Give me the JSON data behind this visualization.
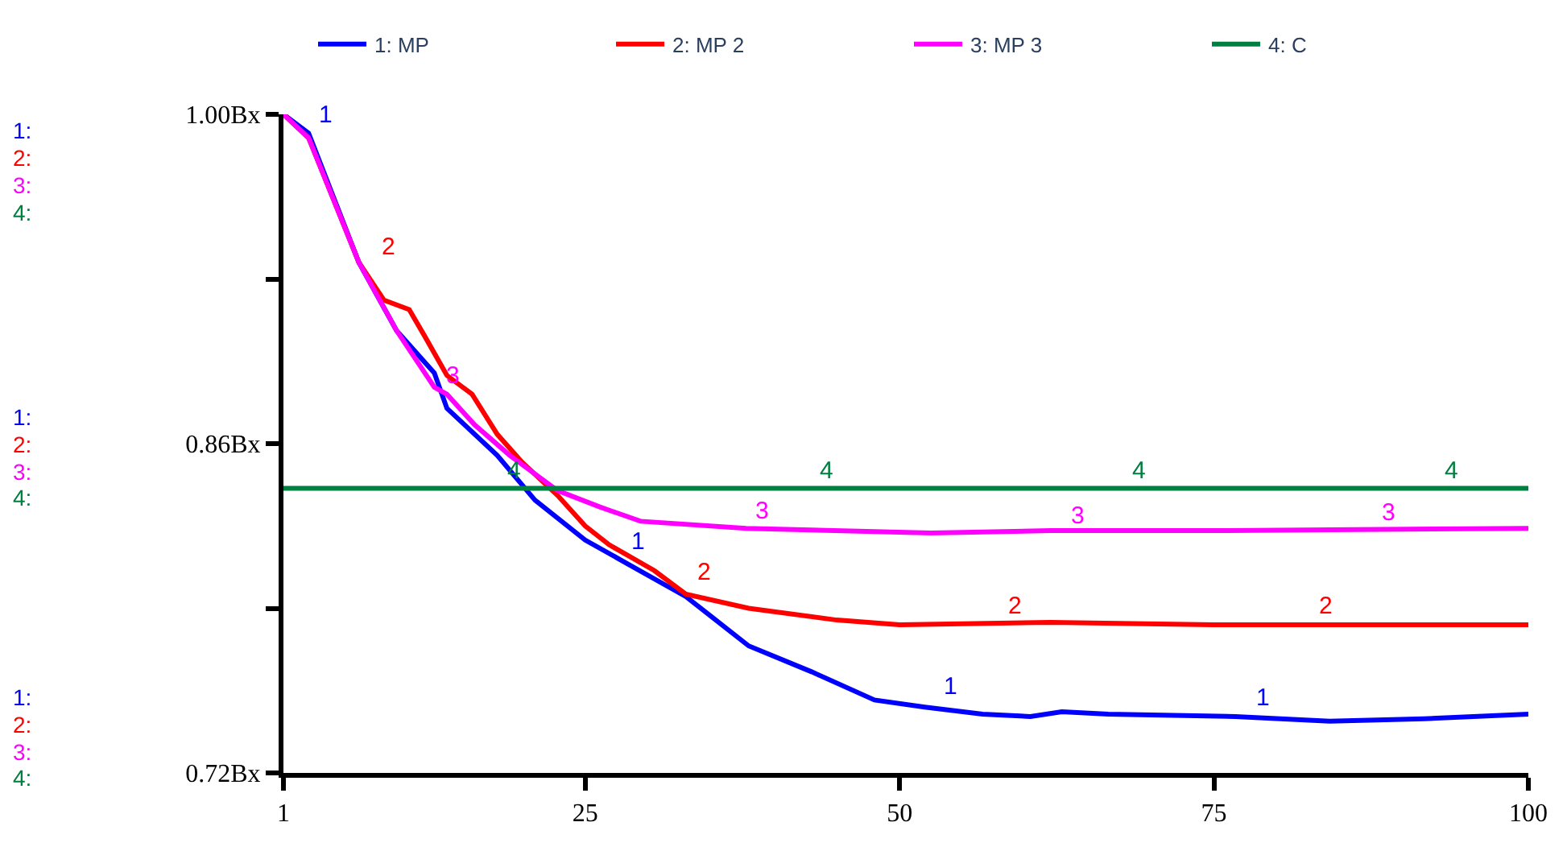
{
  "chart_data": {
    "type": "line",
    "xlim": [
      1,
      100
    ],
    "xticks": [
      1,
      25,
      50,
      75,
      100
    ],
    "ylim": [
      0.72,
      1.0
    ],
    "yticks": [
      {
        "value": 0.72,
        "label": "0.72Bx"
      },
      {
        "value": 0.79,
        "label": null
      },
      {
        "value": 0.86,
        "label": "0.86Bx"
      },
      {
        "value": 0.93,
        "label": null
      },
      {
        "value": 1.0,
        "label": "1.00Bx"
      }
    ],
    "legend": "top",
    "marker": "none",
    "line_style": "solid",
    "series": [
      {
        "name": "1: MP",
        "color": "#0000ff",
        "x": [
          1,
          3,
          7,
          10,
          13,
          14,
          18,
          21,
          25,
          28,
          33,
          38,
          43,
          48,
          52,
          56.6,
          60.4,
          62.9,
          66.6,
          76.7,
          84.2,
          91.7,
          100
        ],
        "values": [
          1.0,
          0.992,
          0.937,
          0.908,
          0.89,
          0.875,
          0.855,
          0.836,
          0.819,
          0.81,
          0.795,
          0.774,
          0.763,
          0.751,
          0.748,
          0.745,
          0.744,
          0.746,
          0.745,
          0.744,
          0.742,
          0.743,
          0.745
        ]
      },
      {
        "name": "2: MP 2",
        "color": "#ff0000",
        "x": [
          1,
          3,
          7,
          9,
          11,
          12.2,
          14,
          16,
          18,
          20,
          22.8,
          25,
          26.9,
          30.5,
          33,
          38,
          45,
          50,
          62,
          75,
          100
        ],
        "values": [
          1.0,
          0.99,
          0.937,
          0.921,
          0.917,
          0.906,
          0.889,
          0.881,
          0.864,
          0.852,
          0.838,
          0.825,
          0.817,
          0.806,
          0.796,
          0.79,
          0.785,
          0.783,
          0.784,
          0.783,
          0.783
        ]
      },
      {
        "name": "3: MP 3",
        "color": "#ff00ff",
        "x": [
          1,
          3,
          7,
          10,
          13,
          14,
          16.2,
          19,
          22.8,
          26.2,
          29.4,
          37.8,
          52.5,
          62,
          75,
          100
        ],
        "values": [
          1.0,
          0.99,
          0.937,
          0.908,
          0.884,
          0.881,
          0.868,
          0.855,
          0.84,
          0.833,
          0.827,
          0.824,
          0.822,
          0.823,
          0.823,
          0.824
        ]
      },
      {
        "name": "4: C",
        "color": "#008040",
        "x": [
          1,
          100
        ],
        "values": [
          0.841,
          0.841
        ]
      }
    ],
    "annotations": [
      "1:",
      "2:",
      "3:",
      "4:",
      "1:",
      "2:",
      "3:",
      "4:",
      "1:",
      "2:",
      "3:",
      "4:",
      {
        "text": "1",
        "x": 3,
        "y": 0.992
      },
      {
        "text": "1",
        "x": 27.9,
        "y": 0.811
      },
      {
        "text": "1",
        "x": 52.8,
        "y": 0.749
      },
      {
        "text": "1",
        "x": 77.6,
        "y": 0.744
      },
      {
        "text": "2",
        "x": 8.1,
        "y": 0.936
      },
      {
        "text": "2",
        "x": 33.1,
        "y": 0.798
      },
      {
        "text": "2",
        "x": 57.9,
        "y": 0.783
      },
      {
        "text": "2",
        "x": 82.6,
        "y": 0.783
      },
      {
        "text": "3",
        "x": 13.2,
        "y": 0.881
      },
      {
        "text": "3",
        "x": 37.8,
        "y": 0.824
      },
      {
        "text": "3",
        "x": 62.9,
        "y": 0.822
      },
      {
        "text": "3",
        "x": 87.6,
        "y": 0.823
      },
      {
        "text": "4",
        "x": 18.0,
        "y": 0.841
      },
      {
        "text": "4",
        "x": 42.9,
        "y": 0.841
      },
      {
        "text": "4",
        "x": 67.7,
        "y": 0.841
      },
      {
        "text": "4",
        "x": 92.6,
        "y": 0.841
      }
    ]
  }
}
